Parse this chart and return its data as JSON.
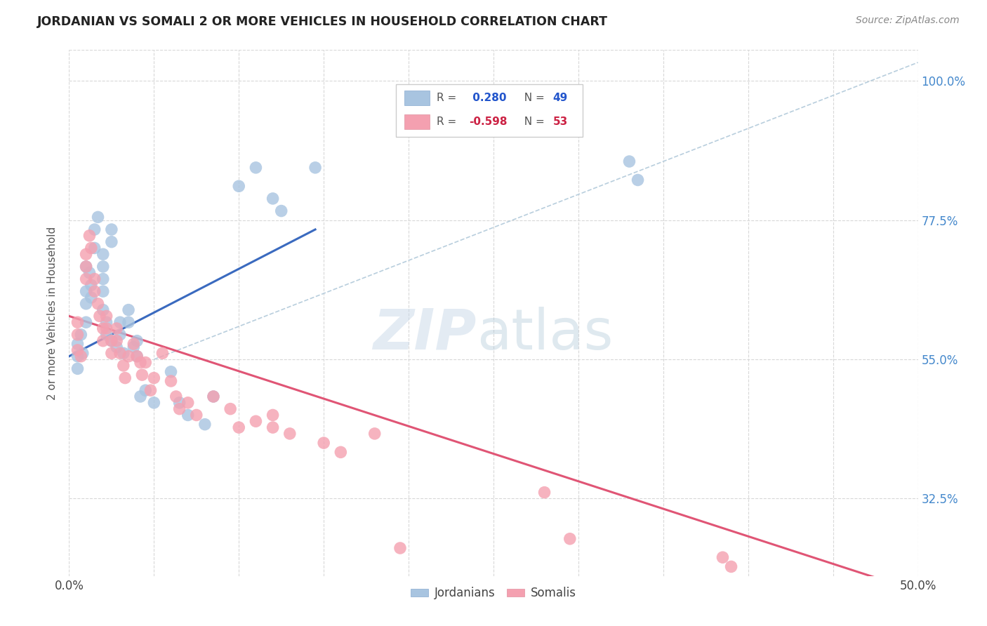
{
  "title": "JORDANIAN VS SOMALI 2 OR MORE VEHICLES IN HOUSEHOLD CORRELATION CHART",
  "source": "Source: ZipAtlas.com",
  "ylabel": "2 or more Vehicles in Household",
  "xlim": [
    0.0,
    0.5
  ],
  "ylim": [
    0.2,
    1.05
  ],
  "ytick_positions": [
    0.325,
    0.55,
    0.775,
    1.0
  ],
  "ytick_labels": [
    "32.5%",
    "55.0%",
    "77.5%",
    "100.0%"
  ],
  "background_color": "#ffffff",
  "grid_color": "#d8d8d8",
  "blue_dot_color": "#a8c4e0",
  "pink_dot_color": "#f4a0b0",
  "blue_line_color": "#3a6abf",
  "pink_line_color": "#e05575",
  "dashed_line_color": "#b8cedd",
  "blue_line": [
    [
      0.0,
      0.555
    ],
    [
      0.145,
      0.76
    ]
  ],
  "pink_line": [
    [
      0.0,
      0.62
    ],
    [
      0.5,
      0.175
    ]
  ],
  "dashed_line": [
    [
      0.05,
      0.55
    ],
    [
      0.5,
      1.03
    ]
  ],
  "blue_scatter": [
    [
      0.005,
      0.535
    ],
    [
      0.005,
      0.555
    ],
    [
      0.005,
      0.575
    ],
    [
      0.007,
      0.59
    ],
    [
      0.008,
      0.56
    ],
    [
      0.01,
      0.61
    ],
    [
      0.01,
      0.64
    ],
    [
      0.01,
      0.66
    ],
    [
      0.01,
      0.7
    ],
    [
      0.012,
      0.69
    ],
    [
      0.013,
      0.67
    ],
    [
      0.013,
      0.65
    ],
    [
      0.015,
      0.73
    ],
    [
      0.015,
      0.76
    ],
    [
      0.017,
      0.78
    ],
    [
      0.02,
      0.72
    ],
    [
      0.02,
      0.7
    ],
    [
      0.02,
      0.68
    ],
    [
      0.02,
      0.66
    ],
    [
      0.02,
      0.63
    ],
    [
      0.022,
      0.61
    ],
    [
      0.022,
      0.59
    ],
    [
      0.025,
      0.76
    ],
    [
      0.025,
      0.74
    ],
    [
      0.025,
      0.58
    ],
    [
      0.028,
      0.57
    ],
    [
      0.03,
      0.61
    ],
    [
      0.03,
      0.59
    ],
    [
      0.032,
      0.56
    ],
    [
      0.035,
      0.63
    ],
    [
      0.035,
      0.61
    ],
    [
      0.038,
      0.57
    ],
    [
      0.04,
      0.58
    ],
    [
      0.04,
      0.555
    ],
    [
      0.042,
      0.49
    ],
    [
      0.045,
      0.5
    ],
    [
      0.05,
      0.48
    ],
    [
      0.06,
      0.53
    ],
    [
      0.065,
      0.48
    ],
    [
      0.07,
      0.46
    ],
    [
      0.08,
      0.445
    ],
    [
      0.085,
      0.49
    ],
    [
      0.1,
      0.83
    ],
    [
      0.11,
      0.86
    ],
    [
      0.12,
      0.81
    ],
    [
      0.125,
      0.79
    ],
    [
      0.145,
      0.86
    ],
    [
      0.33,
      0.87
    ],
    [
      0.335,
      0.84
    ]
  ],
  "pink_scatter": [
    [
      0.005,
      0.565
    ],
    [
      0.005,
      0.59
    ],
    [
      0.005,
      0.61
    ],
    [
      0.007,
      0.555
    ],
    [
      0.01,
      0.72
    ],
    [
      0.01,
      0.7
    ],
    [
      0.01,
      0.68
    ],
    [
      0.012,
      0.75
    ],
    [
      0.013,
      0.73
    ],
    [
      0.015,
      0.68
    ],
    [
      0.015,
      0.66
    ],
    [
      0.017,
      0.64
    ],
    [
      0.018,
      0.62
    ],
    [
      0.02,
      0.6
    ],
    [
      0.02,
      0.58
    ],
    [
      0.022,
      0.62
    ],
    [
      0.022,
      0.6
    ],
    [
      0.025,
      0.58
    ],
    [
      0.025,
      0.56
    ],
    [
      0.028,
      0.6
    ],
    [
      0.028,
      0.58
    ],
    [
      0.03,
      0.56
    ],
    [
      0.032,
      0.54
    ],
    [
      0.033,
      0.52
    ],
    [
      0.035,
      0.555
    ],
    [
      0.038,
      0.575
    ],
    [
      0.04,
      0.555
    ],
    [
      0.042,
      0.545
    ],
    [
      0.043,
      0.525
    ],
    [
      0.045,
      0.545
    ],
    [
      0.048,
      0.5
    ],
    [
      0.05,
      0.52
    ],
    [
      0.055,
      0.56
    ],
    [
      0.06,
      0.515
    ],
    [
      0.063,
      0.49
    ],
    [
      0.065,
      0.47
    ],
    [
      0.07,
      0.48
    ],
    [
      0.075,
      0.46
    ],
    [
      0.085,
      0.49
    ],
    [
      0.095,
      0.47
    ],
    [
      0.1,
      0.44
    ],
    [
      0.11,
      0.45
    ],
    [
      0.12,
      0.46
    ],
    [
      0.12,
      0.44
    ],
    [
      0.13,
      0.43
    ],
    [
      0.15,
      0.415
    ],
    [
      0.16,
      0.4
    ],
    [
      0.18,
      0.43
    ],
    [
      0.195,
      0.245
    ],
    [
      0.28,
      0.335
    ],
    [
      0.295,
      0.26
    ],
    [
      0.385,
      0.23
    ],
    [
      0.39,
      0.215
    ]
  ]
}
